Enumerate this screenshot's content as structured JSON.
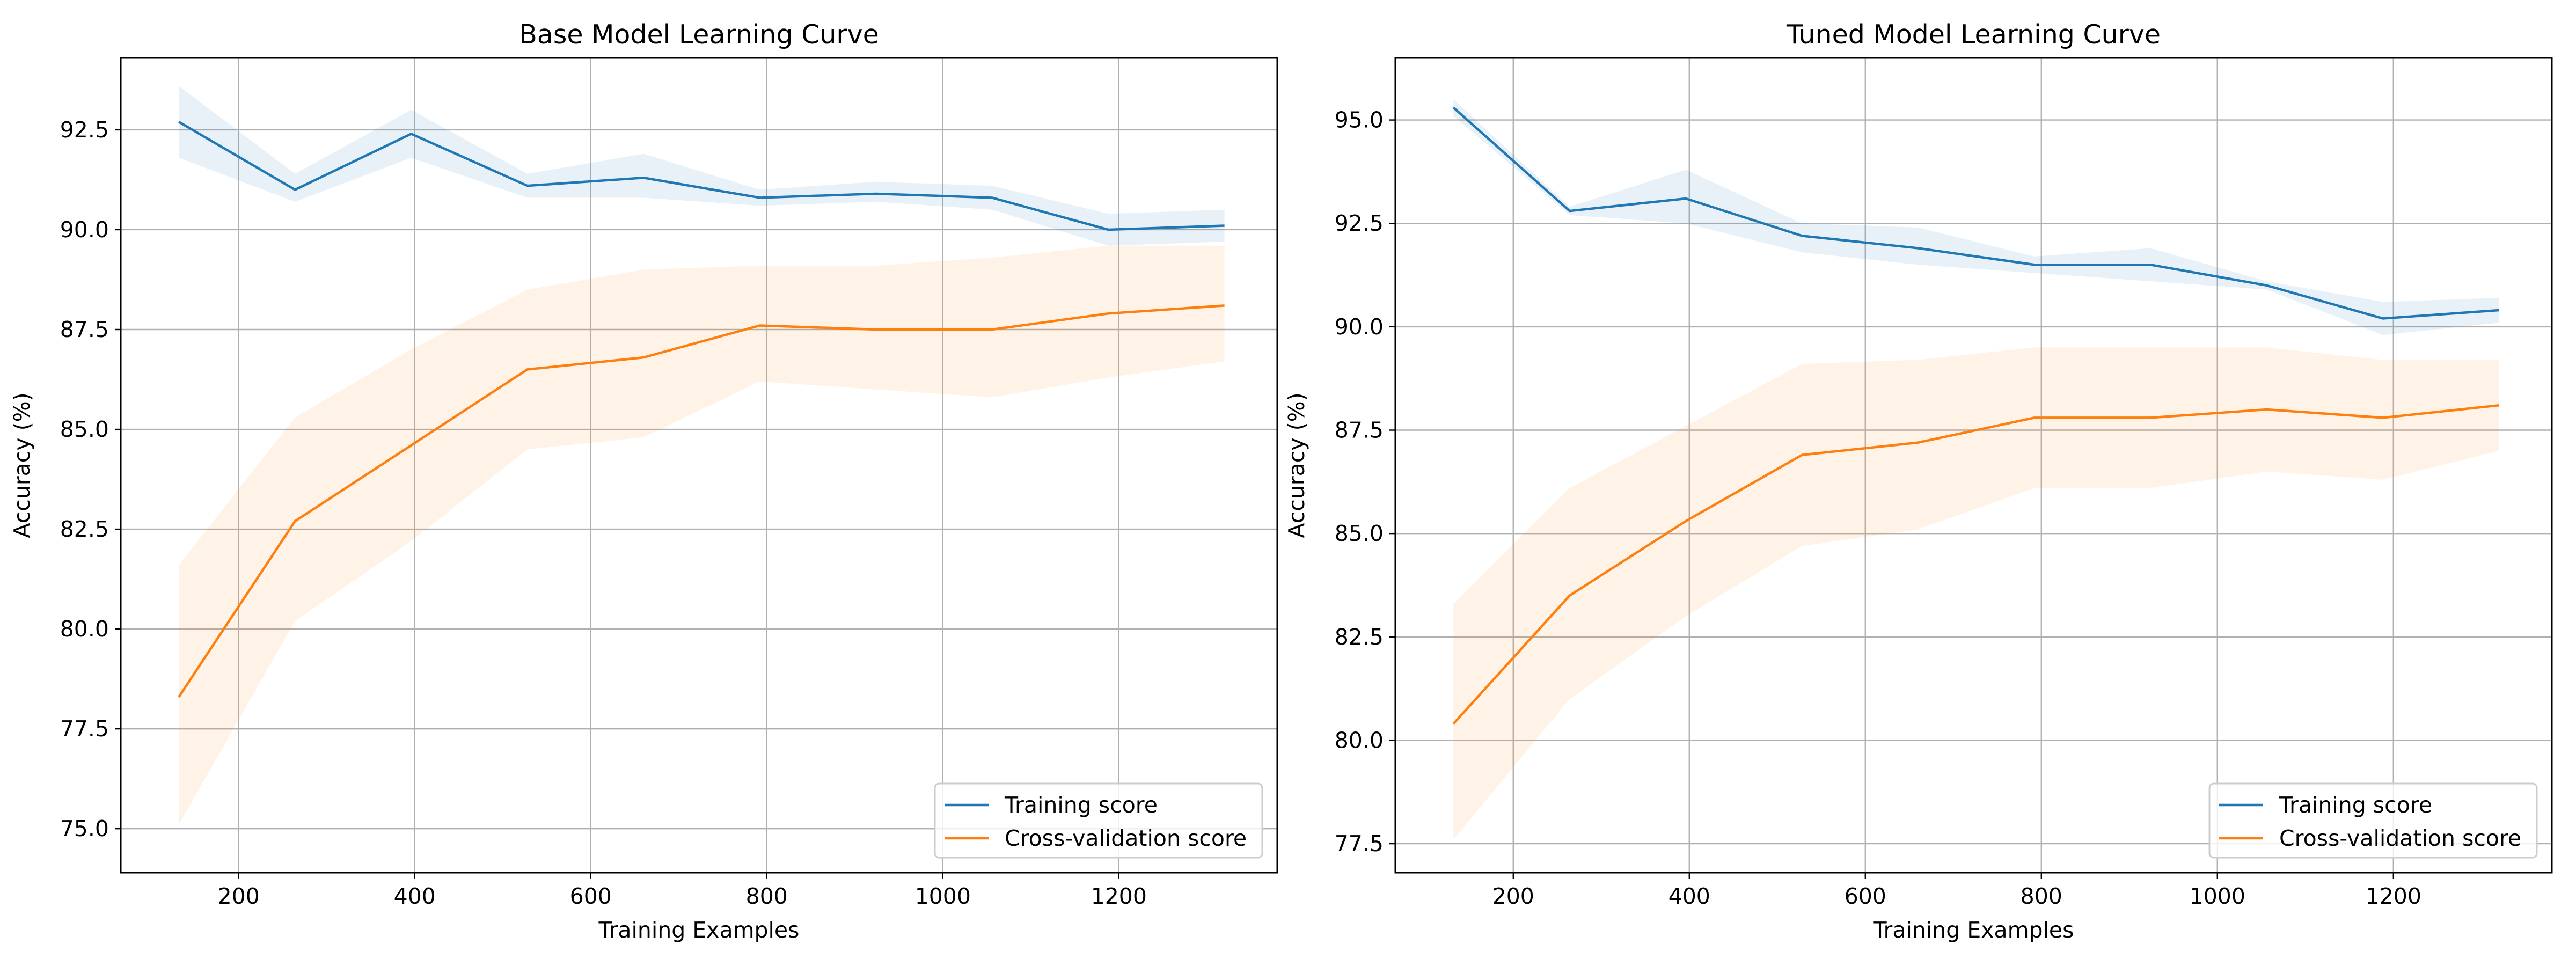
{
  "figure": {
    "background": "#ffffff",
    "colors": {
      "training": "#1f77b4",
      "cv": "#ff7f0e",
      "grid": "#b0b0b0",
      "frame": "#000000"
    }
  },
  "chart_data": [
    {
      "type": "line",
      "title": "Base Model Learning Curve",
      "xlabel": "Training Examples",
      "ylabel": "Accuracy (%)",
      "xlim": [
        66,
        1380
      ],
      "ylim": [
        73.9,
        94.3
      ],
      "xticks": [
        200,
        400,
        600,
        800,
        1000,
        1200
      ],
      "yticks": [
        75.0,
        77.5,
        80.0,
        82.5,
        85.0,
        87.5,
        90.0,
        92.5
      ],
      "grid": true,
      "legend_position": "lower-right",
      "x": [
        132,
        264,
        396,
        528,
        660,
        792,
        924,
        1056,
        1188,
        1320
      ],
      "series": [
        {
          "name": "Training score",
          "color": "#1f77b4",
          "values": [
            92.7,
            91.0,
            92.4,
            91.1,
            91.3,
            90.8,
            90.9,
            90.8,
            90.0,
            90.1
          ],
          "band_lower": [
            91.8,
            90.7,
            91.8,
            90.8,
            90.8,
            90.6,
            90.7,
            90.5,
            89.6,
            89.7
          ],
          "band_upper": [
            93.6,
            91.4,
            93.0,
            91.4,
            91.9,
            91.0,
            91.2,
            91.1,
            90.4,
            90.5
          ]
        },
        {
          "name": "Cross-validation score",
          "color": "#ff7f0e",
          "values": [
            78.3,
            82.7,
            84.6,
            86.5,
            86.8,
            87.6,
            87.5,
            87.5,
            87.9,
            88.1
          ],
          "band_lower": [
            75.1,
            80.2,
            82.2,
            84.5,
            84.8,
            86.2,
            86.0,
            85.8,
            86.3,
            86.7
          ],
          "band_upper": [
            81.6,
            85.3,
            87.0,
            88.5,
            89.0,
            89.1,
            89.1,
            89.3,
            89.6,
            89.6
          ]
        }
      ]
    },
    {
      "type": "line",
      "title": "Tuned Model Learning Curve",
      "xlabel": "Training Examples",
      "ylabel": "Accuracy (%)",
      "xlim": [
        66,
        1380
      ],
      "ylim": [
        76.8,
        96.5
      ],
      "xticks": [
        200,
        400,
        600,
        800,
        1000,
        1200
      ],
      "yticks": [
        77.5,
        80.0,
        82.5,
        85.0,
        87.5,
        90.0,
        92.5,
        95.0
      ],
      "grid": true,
      "legend_position": "lower-right",
      "x": [
        132,
        264,
        396,
        528,
        660,
        792,
        924,
        1056,
        1188,
        1320
      ],
      "series": [
        {
          "name": "Training score",
          "color": "#1f77b4",
          "values": [
            95.3,
            92.8,
            93.1,
            92.2,
            91.9,
            91.5,
            91.5,
            91.0,
            90.2,
            90.4
          ],
          "band_lower": [
            95.1,
            92.7,
            92.5,
            91.8,
            91.5,
            91.3,
            91.1,
            90.9,
            89.8,
            90.1
          ],
          "band_upper": [
            95.5,
            92.9,
            93.8,
            92.5,
            92.4,
            91.7,
            91.9,
            91.1,
            90.6,
            90.7
          ]
        },
        {
          "name": "Cross-validation score",
          "color": "#ff7f0e",
          "values": [
            80.4,
            83.5,
            85.3,
            86.9,
            87.2,
            87.8,
            87.8,
            88.0,
            87.8,
            88.1
          ],
          "band_lower": [
            77.6,
            81.0,
            83.0,
            84.7,
            85.1,
            86.1,
            86.1,
            86.5,
            86.3,
            87.0
          ],
          "band_upper": [
            83.3,
            86.1,
            87.6,
            89.1,
            89.2,
            89.5,
            89.5,
            89.5,
            89.2,
            89.2
          ]
        }
      ]
    }
  ]
}
